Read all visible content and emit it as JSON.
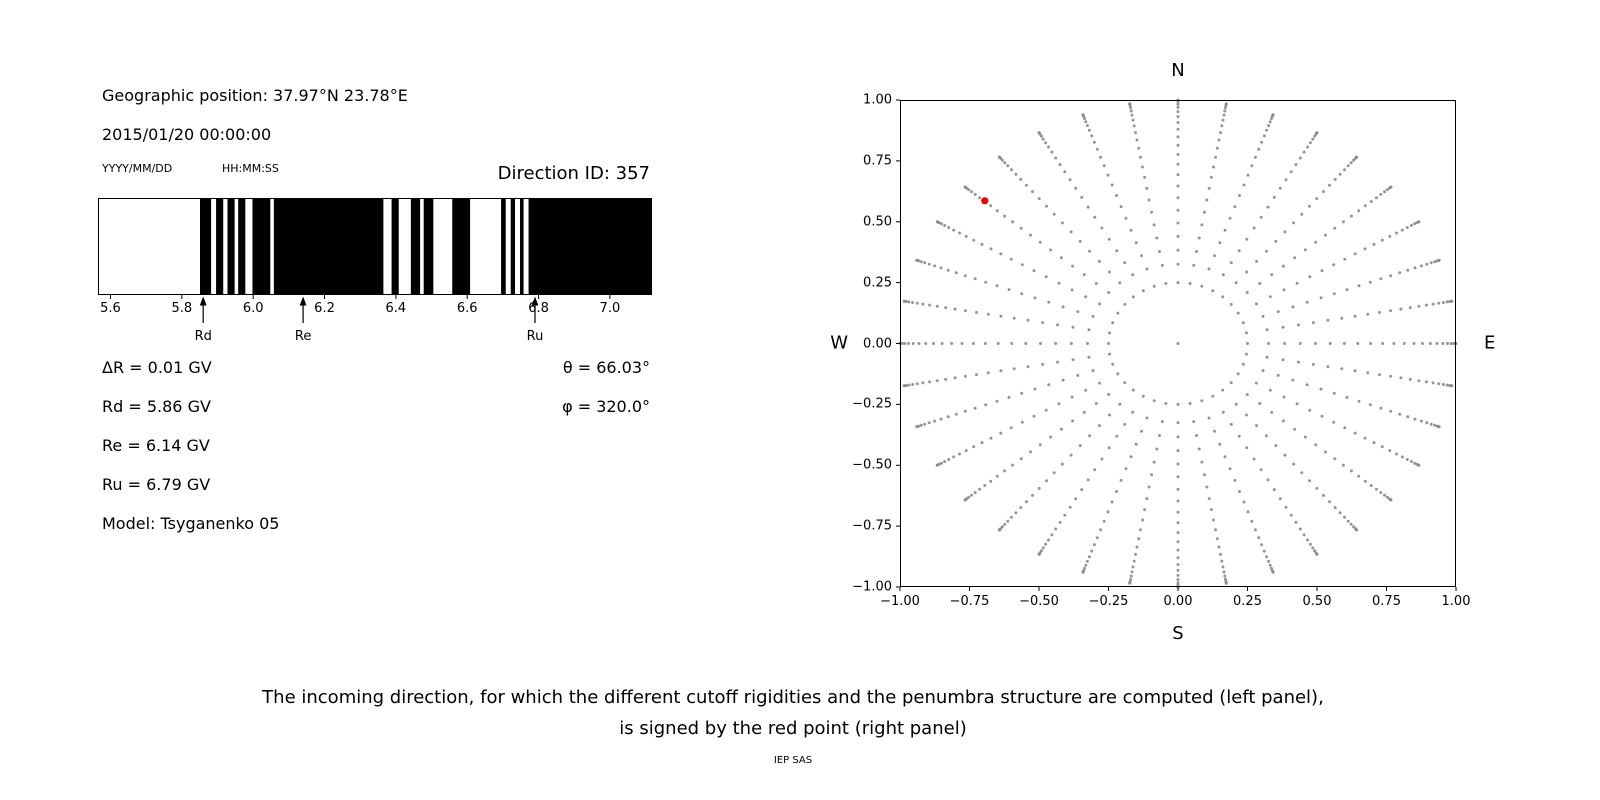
{
  "colors": {
    "background": "#ffffff",
    "text": "#000000",
    "dot_gray": "#8a8a8a",
    "red_point": "#e60000"
  },
  "left_panel": {
    "geo_position": "Geographic position: 37.97°N 23.78°E",
    "datetime": "2015/01/20 00:00:00",
    "date_format": "YYYY/MM/DD",
    "time_format": "HH:MM:SS",
    "direction_id": "Direction ID: 357",
    "params_left": [
      "ΔR = 0.01 GV",
      "Rd = 5.86 GV",
      "Re = 6.14 GV",
      "Ru = 6.79 GV",
      "Model: Tsyganenko 05"
    ],
    "params_right": [
      "θ = 66.03°",
      "φ = 320.0°"
    ]
  },
  "caption": {
    "line1": "The incoming direction, for which the different cutoff rigidities and the penumbra structure are computed (left panel),",
    "line2": "is signed by the red point (right panel)",
    "credit": "IEP SAS"
  },
  "chart_data": [
    {
      "type": "bar",
      "name": "penumbra-structure",
      "description": "Cosmic-ray cutoff rigidity penumbra; black bands are allowed rigidity intervals in GV",
      "xlim": [
        5.565,
        7.118
      ],
      "xticks": [
        {
          "value": 5.6,
          "label": "5.6"
        },
        {
          "value": 5.8,
          "label": "5.8"
        },
        {
          "value": 6.0,
          "label": "6.0"
        },
        {
          "value": 6.2,
          "label": "6.2"
        },
        {
          "value": 6.4,
          "label": "6.4"
        },
        {
          "value": 6.6,
          "label": "6.6"
        },
        {
          "value": 6.8,
          "label": "6.8"
        },
        {
          "value": 7.0,
          "label": "7.0"
        }
      ],
      "black_intervals_gv": [
        [
          5.851,
          5.882
        ],
        [
          5.896,
          5.916
        ],
        [
          5.928,
          5.948
        ],
        [
          5.958,
          5.978
        ],
        [
          5.998,
          6.048
        ],
        [
          6.058,
          6.365
        ],
        [
          6.388,
          6.408
        ],
        [
          6.442,
          6.468
        ],
        [
          6.478,
          6.505
        ],
        [
          6.558,
          6.608
        ],
        [
          6.695,
          6.708
        ],
        [
          6.722,
          6.734
        ],
        [
          6.748,
          6.758
        ],
        [
          6.772,
          7.118
        ]
      ],
      "markers": [
        {
          "label": "Rd",
          "value_gv": 5.86
        },
        {
          "label": "Re",
          "value_gv": 6.14
        },
        {
          "label": "Ru",
          "value_gv": 6.79
        }
      ]
    },
    {
      "type": "scatter",
      "name": "incoming-directions",
      "description": "Grid of incoming directions projected as r = sin(zenith); red point marks the computed direction",
      "xlim": [
        -1,
        1
      ],
      "ylim": [
        -1,
        1
      ],
      "xticks": [
        {
          "value": -1.0,
          "label": "−1.00"
        },
        {
          "value": -0.75,
          "label": "−0.75"
        },
        {
          "value": -0.5,
          "label": "−0.50"
        },
        {
          "value": -0.25,
          "label": "−0.25"
        },
        {
          "value": 0.0,
          "label": "0.00"
        },
        {
          "value": 0.25,
          "label": "0.25"
        },
        {
          "value": 0.5,
          "label": "0.50"
        },
        {
          "value": 0.75,
          "label": "0.75"
        },
        {
          "value": 1.0,
          "label": "1.00"
        }
      ],
      "yticks": [
        {
          "value": 1.0,
          "label": "1.00"
        },
        {
          "value": 0.75,
          "label": "0.75"
        },
        {
          "value": 0.5,
          "label": "0.50"
        },
        {
          "value": 0.25,
          "label": "0.25"
        },
        {
          "value": 0.0,
          "label": "0.00"
        },
        {
          "value": -0.25,
          "label": "−0.25"
        },
        {
          "value": -0.5,
          "label": "−0.50"
        },
        {
          "value": -0.75,
          "label": "−0.75"
        },
        {
          "value": -1.0,
          "label": "−1.00"
        }
      ],
      "compass": {
        "top": "N",
        "bottom": "S",
        "left": "W",
        "right": "E"
      },
      "grid": {
        "azimuth_step_deg": 10,
        "plot_angle_offset_deg": -180,
        "inner_ring_radius": 0.25,
        "zenith_start_deg": 19,
        "zenith_end_deg": 90,
        "zenith_step_deg": 3.55,
        "radius_rule": "r = sin(zenith)",
        "center_dot": true
      },
      "red_point": {
        "theta_deg": 66.03,
        "phi_deg": 320.0,
        "x": -0.695,
        "y": 0.586
      }
    }
  ]
}
